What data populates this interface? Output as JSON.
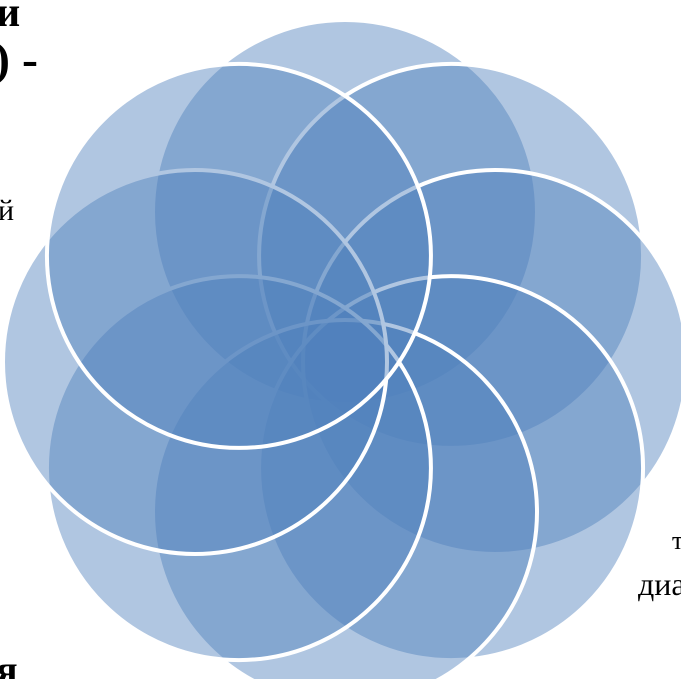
{
  "fragments": [
    "и",
    ") -",
    "й",
    "т",
    "диа",
    "я"
  ]
}
